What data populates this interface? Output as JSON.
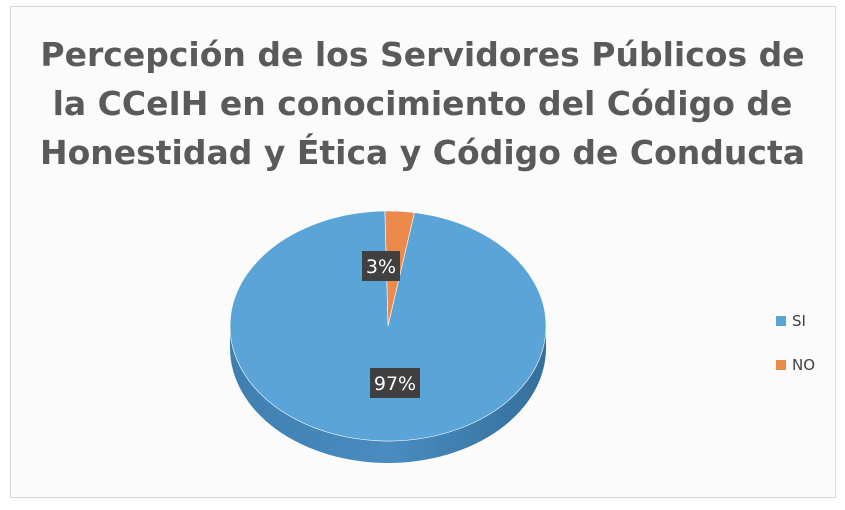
{
  "chart_data": {
    "type": "pie",
    "title_lines": [
      "Percepción de los Servidores Públicos de",
      "la CCeIH en conocimiento del Código de",
      "Honestidad y Ética y Código de Conducta"
    ],
    "categories": [
      "SI",
      "NO"
    ],
    "values": [
      97,
      3
    ],
    "labels": [
      "97%",
      "3%"
    ],
    "colors": [
      "#5ba4d8",
      "#ec8a4c"
    ],
    "legend": "right"
  }
}
